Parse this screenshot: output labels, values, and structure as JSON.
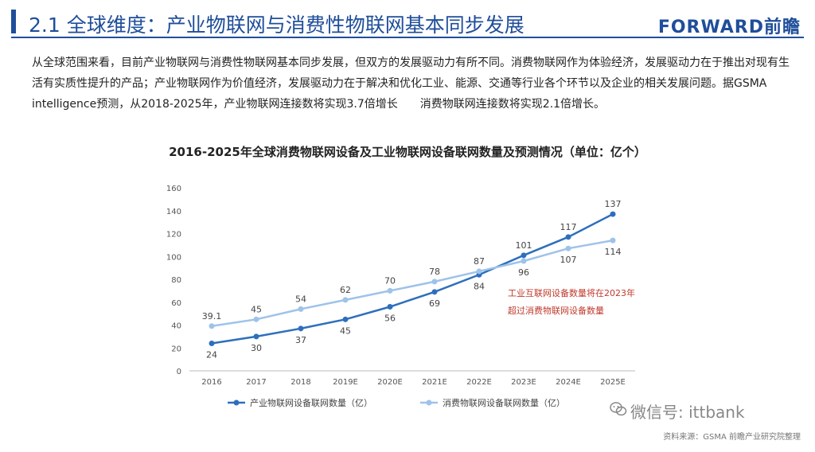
{
  "header": {
    "title": "2.1 全球维度：产业物联网与消费性物联网基本同步发展",
    "brand": "FORWARD前瞻"
  },
  "intro_text": "从全球范围来看，目前产业物联网与消费性物联网基本同步发展，但双方的发展驱动力有所不同。消费物联网作为体验经济，发展驱动力在于推出对现有生活有实质性提升的产品；产业物联网作为价值经济，发展驱动力在于解决和优化工业、能源、交通等行业各个环节以及企业的相关发展问题。据GSMA intelligence预测，从2018-2025年，产业物联网连接数将实现3.7倍增长　　消费物联网连接数将实现2.1倍增长。",
  "chart_data": {
    "type": "line",
    "title": "2016-2025年全球消费物联网设备及工业物联网设备联网数量及预测情况（单位：亿个）",
    "categories": [
      "2016",
      "2017",
      "2018",
      "2019E",
      "2020E",
      "2021E",
      "2022E",
      "2023E",
      "2024E",
      "2025E"
    ],
    "ylim": [
      0,
      160
    ],
    "yticks": [
      0,
      20,
      40,
      60,
      80,
      100,
      120,
      140,
      160
    ],
    "grid": false,
    "legend_position": "bottom",
    "series": [
      {
        "name": "产业物联网设备联网数量（亿）",
        "color": "#2e6fbd",
        "values": [
          24,
          30,
          37,
          45,
          56,
          69,
          84,
          101,
          117,
          137
        ],
        "labels": [
          "24",
          "30",
          "37",
          "45",
          "56",
          "69",
          "84",
          "101",
          "117",
          "137"
        ]
      },
      {
        "name": "消费物联网设备联网数量（亿）",
        "color": "#9ec3ea",
        "values": [
          39.1,
          45,
          54,
          62,
          70,
          78,
          87,
          96,
          107,
          114
        ],
        "labels": [
          "39.1",
          "45",
          "54",
          "62",
          "70",
          "78",
          "87",
          "96",
          "107",
          "114"
        ]
      }
    ],
    "annotation": [
      "工业互联网设备数量将在2023年",
      "超过消费物联网设备数量"
    ]
  },
  "footer": {
    "wechat": "微信号: ittbank",
    "source": "资料来源：GSMA 前瞻产业研究院整理"
  }
}
